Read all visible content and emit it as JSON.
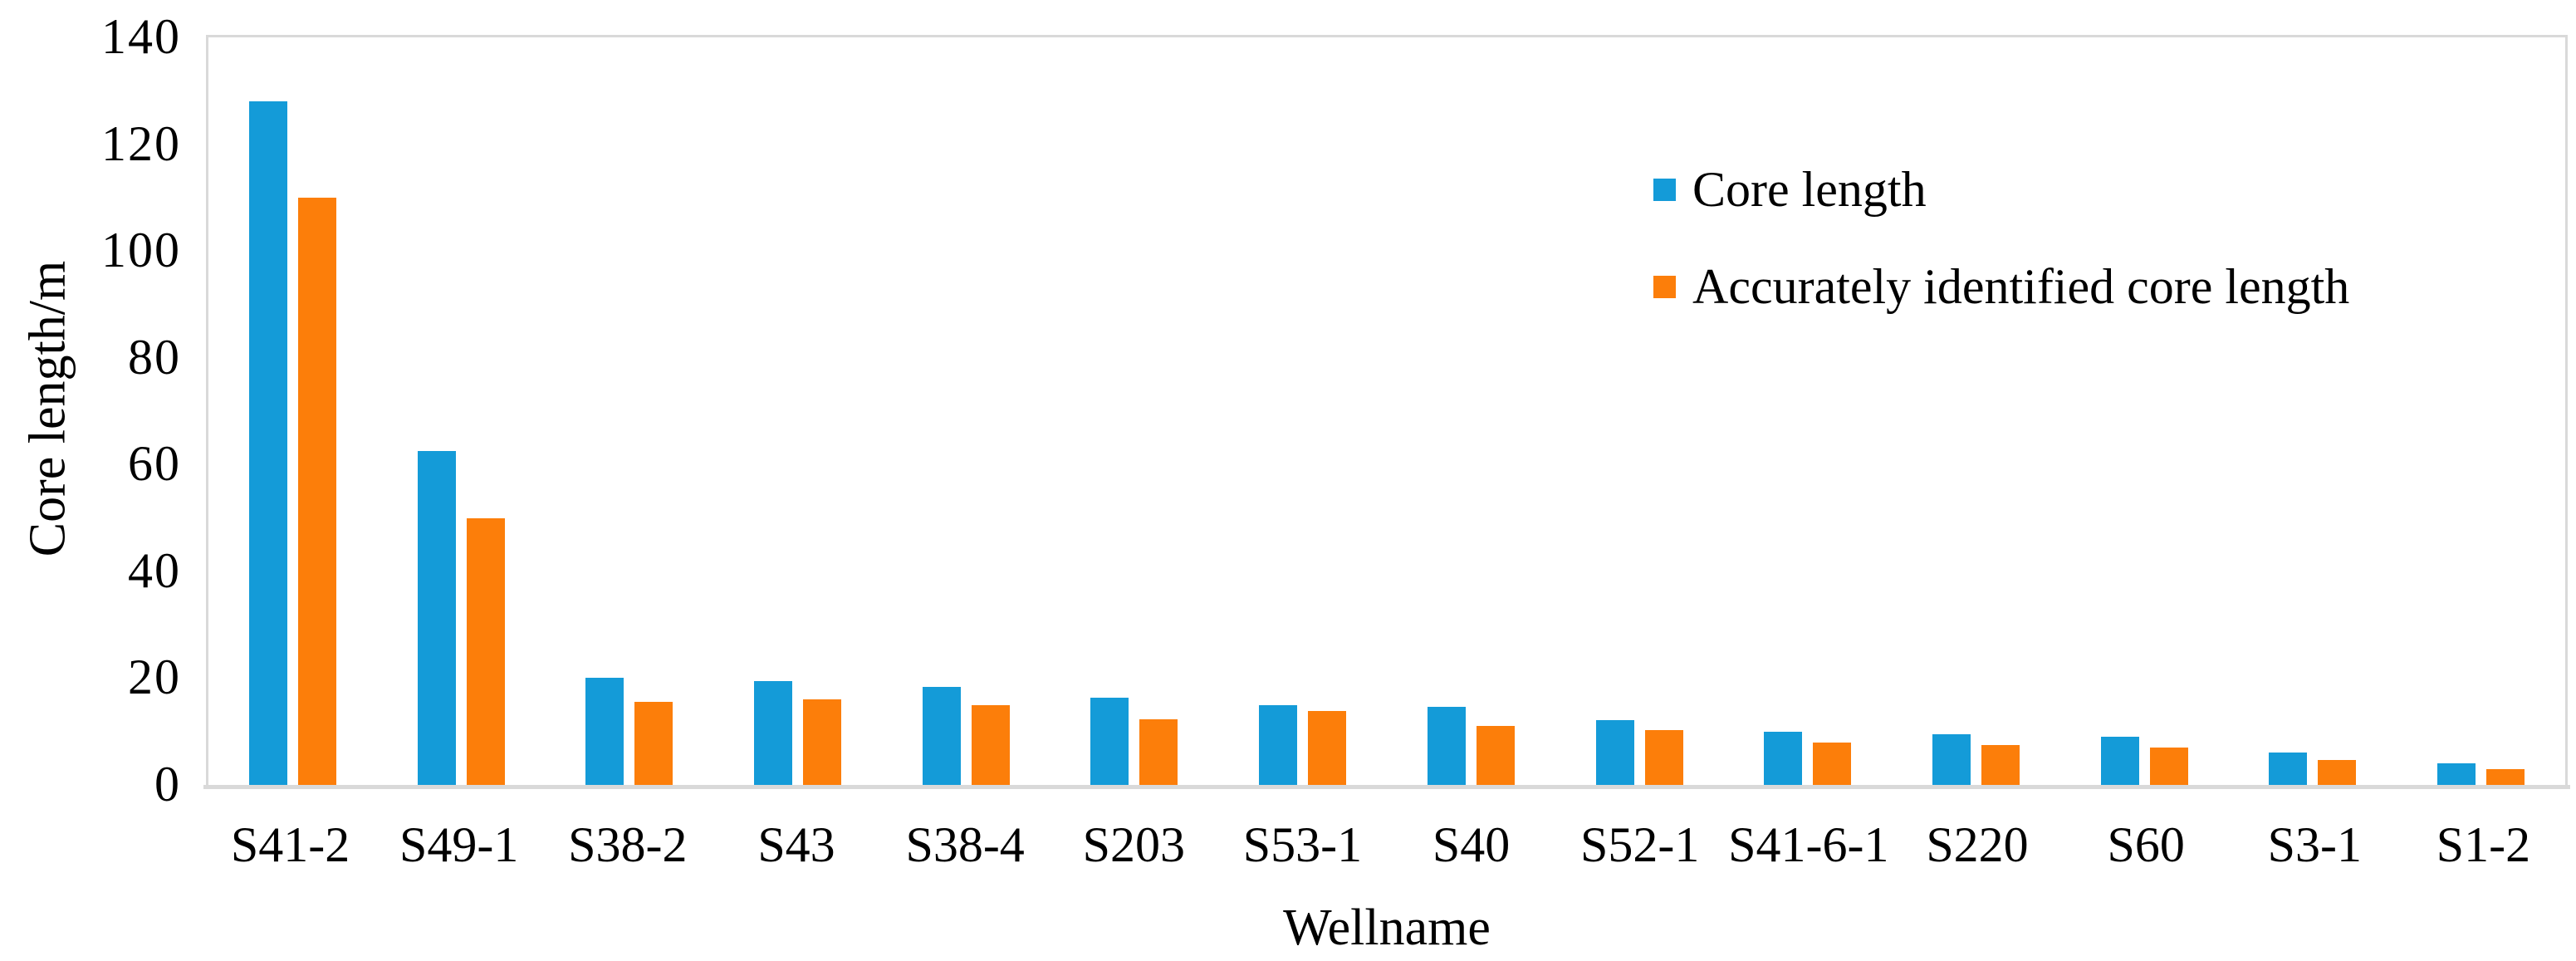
{
  "chart_data": {
    "type": "bar",
    "title": "",
    "xlabel": "Wellname",
    "ylabel": "Core length/m",
    "categories": [
      "S41-2",
      "S49-1",
      "S38-2",
      "S43",
      "S38-4",
      "S203",
      "S53-1",
      "S40",
      "S52-1",
      "S41-6-1",
      "S220",
      "S60",
      "S3-1",
      "S1-2"
    ],
    "series": [
      {
        "name": "Core length",
        "color": "#149BD8",
        "values": [
          128,
          62.5,
          20,
          19.5,
          18.3,
          16.3,
          15,
          14.7,
          12.2,
          10,
          9.5,
          9,
          6,
          4.1
        ]
      },
      {
        "name": "Accurately identified core length",
        "color": "#FC7E0A",
        "values": [
          110,
          50,
          15.5,
          16,
          15,
          12.3,
          13.8,
          11,
          10.2,
          8,
          7.4,
          7,
          4.7,
          3
        ]
      }
    ],
    "ylim": [
      0,
      140
    ],
    "yticks": [
      0,
      20,
      40,
      60,
      80,
      100,
      120,
      140
    ],
    "grid": false,
    "legend_position": "upper-right",
    "axis_line_color": "#D9D9D9",
    "background_color": "#FFFFFF",
    "text_color": "#000000"
  }
}
